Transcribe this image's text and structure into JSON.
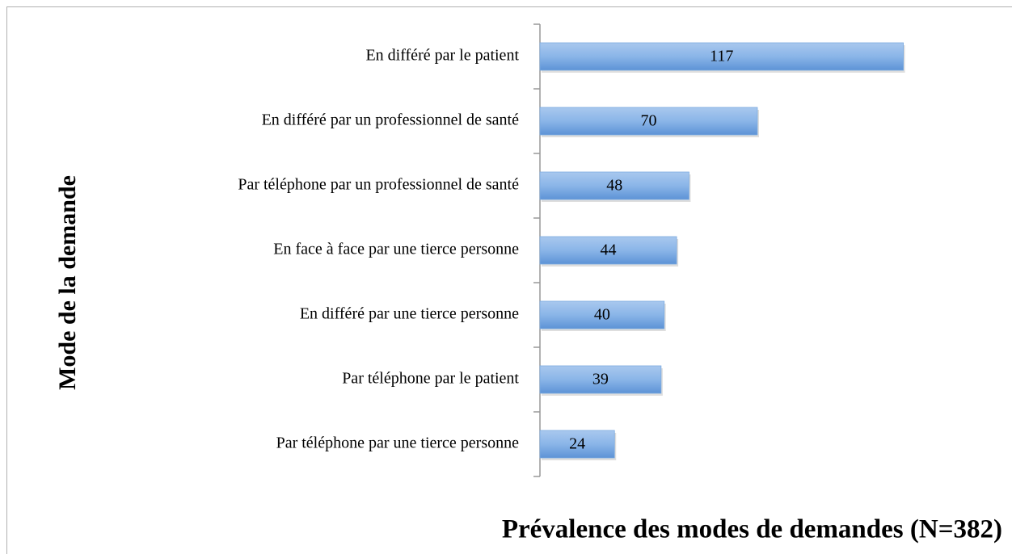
{
  "chart_data": {
    "type": "bar",
    "orientation": "horizontal",
    "title": "Prévalence des modes de demandes (N=382)",
    "y_label": "Mode de la demande",
    "categories": [
      "En différé par le patient",
      "En différé par un professionnel de santé",
      "Par téléphone par un professionnel de santé",
      "En face à face par une tierce personne",
      "En différé par une tierce personne",
      "Par téléphone par le patient",
      "Par téléphone par une tierce personne"
    ],
    "values": [
      117,
      70,
      48,
      44,
      40,
      39,
      24
    ],
    "color": "#7aaae0",
    "xlim": [
      0,
      140
    ]
  }
}
